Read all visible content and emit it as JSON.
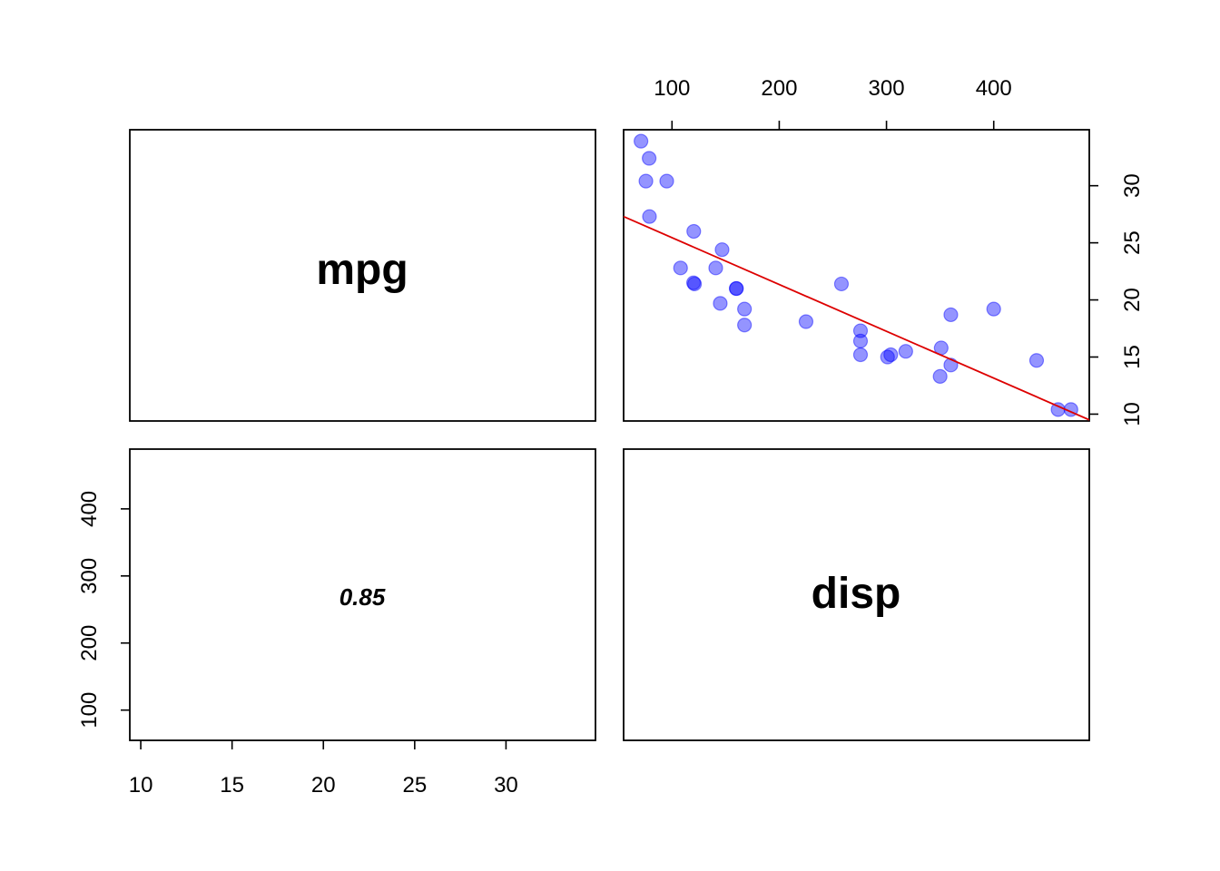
{
  "chart_data": {
    "type": "scatter",
    "layout": "pairs-matrix",
    "variables": [
      "mpg",
      "disp"
    ],
    "correlation_label": "0.85",
    "colors": {
      "points": "#0000FF",
      "fit_line": "#DD0000"
    },
    "grid": false,
    "axes": {
      "mpg": {
        "range": [
          9.4,
          34.9
        ],
        "ticks": [
          "10",
          "15",
          "20",
          "25",
          "30"
        ]
      },
      "disp": {
        "range": [
          54.9,
          489.1
        ],
        "ticks": [
          "100",
          "200",
          "300",
          "400"
        ]
      }
    },
    "upper_panel": {
      "x_variable": "disp",
      "y_variable": "mpg",
      "points": [
        [
          71.1,
          33.9
        ],
        [
          78.7,
          32.4
        ],
        [
          75.7,
          30.4
        ],
        [
          95.1,
          30.4
        ],
        [
          79.0,
          27.3
        ],
        [
          120.3,
          26.0
        ],
        [
          146.7,
          24.4
        ],
        [
          108.0,
          22.8
        ],
        [
          140.8,
          22.8
        ],
        [
          120.1,
          21.5
        ],
        [
          121.0,
          21.4
        ],
        [
          160.0,
          21.0
        ],
        [
          160.0,
          21.0
        ],
        [
          145.0,
          19.7
        ],
        [
          167.6,
          19.2
        ],
        [
          167.6,
          17.8
        ],
        [
          225.0,
          18.1
        ],
        [
          258.0,
          21.4
        ],
        [
          275.8,
          17.3
        ],
        [
          275.8,
          16.4
        ],
        [
          275.8,
          15.2
        ],
        [
          301.0,
          15.0
        ],
        [
          304.0,
          15.2
        ],
        [
          318.0,
          15.5
        ],
        [
          350.0,
          13.3
        ],
        [
          351.0,
          15.8
        ],
        [
          360.0,
          18.7
        ],
        [
          360.0,
          14.3
        ],
        [
          400.0,
          19.2
        ],
        [
          440.0,
          14.7
        ],
        [
          460.0,
          10.4
        ],
        [
          472.0,
          10.4
        ]
      ],
      "fit_line": [
        [
          54.9,
          27.3
        ],
        [
          489.1,
          9.5
        ]
      ]
    }
  }
}
